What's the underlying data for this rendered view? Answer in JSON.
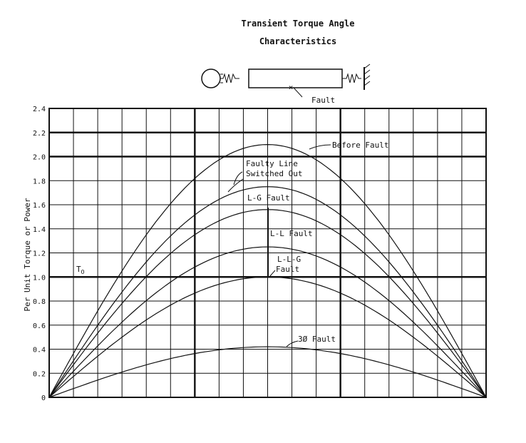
{
  "title_line1": "Transient Torque Angle",
  "title_line2": "Characteristics",
  "schematic": {
    "fault_label": "Fault"
  },
  "chart_data": {
    "type": "line",
    "title": "Transient Torque Angle Characteristics",
    "xlabel": "",
    "ylabel": "Per Unit Torque or Power",
    "ylim": [
      0,
      2.4
    ],
    "ytick_labels": [
      "0",
      "0.2",
      "0.4",
      "0.6",
      "0.8",
      "1.0",
      "1.2",
      "1.4",
      "1.6",
      "1.8",
      "2.0",
      "2.2",
      "2.4"
    ],
    "xlim": [
      0,
      180
    ],
    "grid": true,
    "x": [
      0,
      30,
      60,
      90,
      120,
      150,
      180
    ],
    "series": [
      {
        "name": "Before Fault",
        "values": [
          0,
          1.05,
          1.82,
          2.1,
          1.82,
          1.05,
          0
        ]
      },
      {
        "name": "Faulty Line Switched Out",
        "values": [
          0,
          0.88,
          1.52,
          1.75,
          1.52,
          0.88,
          0
        ]
      },
      {
        "name": "L-G Fault",
        "values": [
          0,
          0.78,
          1.35,
          1.56,
          1.35,
          0.78,
          0
        ]
      },
      {
        "name": "L-L Fault",
        "values": [
          0,
          0.62,
          1.08,
          1.25,
          1.08,
          0.62,
          0
        ]
      },
      {
        "name": "L-L-G Fault",
        "values": [
          0,
          0.5,
          0.87,
          1.0,
          0.87,
          0.5,
          0
        ]
      },
      {
        "name": "3Ø Fault",
        "values": [
          0,
          0.21,
          0.36,
          0.42,
          0.36,
          0.21,
          0
        ]
      }
    ],
    "annotations": {
      "to_label": "T",
      "to_sub": "O",
      "before_fault": "Before Fault",
      "faulty_line_1": "Faulty Line",
      "faulty_line_2": "Switched Out",
      "lg_fault": "L-G Fault",
      "ll_fault": "L-L Fault",
      "llg_fault_1": "L-L-G",
      "llg_fault_2": "Fault",
      "three_phase_fault": "3Ø Fault"
    }
  }
}
